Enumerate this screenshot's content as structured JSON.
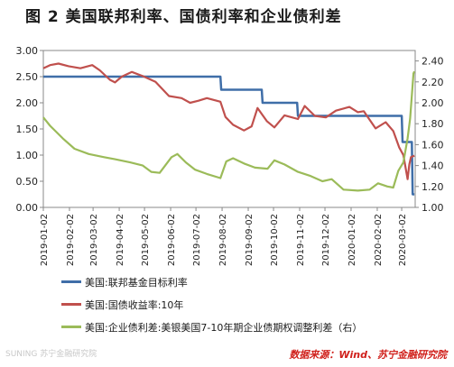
{
  "figure": {
    "title": "图 2  美国联邦利率、国债利率和企业债利差",
    "source": "数据来源：Wind、苏宁金融研究院",
    "watermark": "SUNING 苏宁金融研究院"
  },
  "colors": {
    "fed_funds": "#3f6ea8",
    "treasury_10y": "#c0504d",
    "corp_spread": "#9bbb59",
    "axis": "#888888",
    "title": "#1a1a1a",
    "source": "#d0201b"
  },
  "chart_data": {
    "type": "line",
    "left_axis": {
      "ylim": [
        0.0,
        3.0
      ],
      "ticks": [
        "0.00",
        "0.50",
        "1.00",
        "1.50",
        "2.00",
        "2.50",
        "3.00"
      ]
    },
    "right_axis": {
      "ylim": [
        1.0,
        2.5
      ],
      "ticks": [
        "1.00",
        "1.20",
        "1.40",
        "1.60",
        "1.80",
        "2.00",
        "2.20",
        "2.40"
      ]
    },
    "x_ticks": [
      "2019-01-02",
      "2019-02-02",
      "2019-03-02",
      "2019-04-02",
      "2019-05-02",
      "2019-06-02",
      "2019-07-02",
      "2019-08-02",
      "2019-09-02",
      "2019-10-02",
      "2019-11-02",
      "2019-12-02",
      "2020-01-02",
      "2020-02-02",
      "2020-03-02"
    ],
    "grid": false,
    "legend_placement": "bottom",
    "series": [
      {
        "name": "美国:联邦基金目标利率",
        "axis": "left",
        "points": [
          [
            "2019-01-02",
            2.5
          ],
          [
            "2019-07-31",
            2.5
          ],
          [
            "2019-08-01",
            2.25
          ],
          [
            "2019-09-18",
            2.25
          ],
          [
            "2019-09-19",
            2.0
          ],
          [
            "2019-10-30",
            2.0
          ],
          [
            "2019-10-31",
            1.75
          ],
          [
            "2020-03-02",
            1.75
          ],
          [
            "2020-03-03",
            1.25
          ],
          [
            "2020-03-14",
            1.25
          ],
          [
            "2020-03-15",
            0.25
          ],
          [
            "2020-03-17",
            0.25
          ]
        ]
      },
      {
        "name": "美国:国债收益率:10年",
        "axis": "left",
        "points": [
          [
            "2019-01-02",
            2.66
          ],
          [
            "2019-01-10",
            2.72
          ],
          [
            "2019-01-20",
            2.75
          ],
          [
            "2019-02-01",
            2.7
          ],
          [
            "2019-02-15",
            2.66
          ],
          [
            "2019-03-01",
            2.72
          ],
          [
            "2019-03-10",
            2.62
          ],
          [
            "2019-03-22",
            2.44
          ],
          [
            "2019-03-28",
            2.39
          ],
          [
            "2019-04-05",
            2.5
          ],
          [
            "2019-04-17",
            2.59
          ],
          [
            "2019-04-30",
            2.51
          ],
          [
            "2019-05-15",
            2.4
          ],
          [
            "2019-05-31",
            2.13
          ],
          [
            "2019-06-15",
            2.09
          ],
          [
            "2019-06-25",
            2.0
          ],
          [
            "2019-07-05",
            2.04
          ],
          [
            "2019-07-15",
            2.09
          ],
          [
            "2019-07-31",
            2.02
          ],
          [
            "2019-08-06",
            1.73
          ],
          [
            "2019-08-15",
            1.58
          ],
          [
            "2019-08-28",
            1.47
          ],
          [
            "2019-09-06",
            1.55
          ],
          [
            "2019-09-13",
            1.9
          ],
          [
            "2019-09-24",
            1.65
          ],
          [
            "2019-10-03",
            1.53
          ],
          [
            "2019-10-15",
            1.76
          ],
          [
            "2019-10-31",
            1.69
          ],
          [
            "2019-11-08",
            1.94
          ],
          [
            "2019-11-20",
            1.75
          ],
          [
            "2019-12-03",
            1.72
          ],
          [
            "2019-12-15",
            1.85
          ],
          [
            "2019-12-31",
            1.92
          ],
          [
            "2020-01-10",
            1.82
          ],
          [
            "2020-01-17",
            1.84
          ],
          [
            "2020-01-31",
            1.51
          ],
          [
            "2020-02-12",
            1.63
          ],
          [
            "2020-02-21",
            1.46
          ],
          [
            "2020-02-28",
            1.15
          ],
          [
            "2020-03-04",
            1.0
          ],
          [
            "2020-03-09",
            0.54
          ],
          [
            "2020-03-11",
            0.82
          ],
          [
            "2020-03-13",
            0.96
          ],
          [
            "2020-03-17",
            0.99
          ]
        ]
      },
      {
        "name": "美国:企业债利差:美银美国7-10年期企业债期权调整利差（右）",
        "axis": "right",
        "points": [
          [
            "2019-01-02",
            1.86
          ],
          [
            "2019-01-10",
            1.78
          ],
          [
            "2019-01-25",
            1.66
          ],
          [
            "2019-02-08",
            1.56
          ],
          [
            "2019-02-25",
            1.51
          ],
          [
            "2019-03-15",
            1.48
          ],
          [
            "2019-03-28",
            1.46
          ],
          [
            "2019-04-15",
            1.43
          ],
          [
            "2019-04-30",
            1.4
          ],
          [
            "2019-05-10",
            1.34
          ],
          [
            "2019-05-20",
            1.33
          ],
          [
            "2019-06-03",
            1.48
          ],
          [
            "2019-06-10",
            1.51
          ],
          [
            "2019-06-20",
            1.43
          ],
          [
            "2019-07-01",
            1.36
          ],
          [
            "2019-07-15",
            1.32
          ],
          [
            "2019-07-31",
            1.28
          ],
          [
            "2019-08-07",
            1.44
          ],
          [
            "2019-08-15",
            1.47
          ],
          [
            "2019-08-28",
            1.42
          ],
          [
            "2019-09-10",
            1.38
          ],
          [
            "2019-09-25",
            1.37
          ],
          [
            "2019-10-03",
            1.45
          ],
          [
            "2019-10-15",
            1.41
          ],
          [
            "2019-10-31",
            1.34
          ],
          [
            "2019-11-15",
            1.3
          ],
          [
            "2019-11-29",
            1.25
          ],
          [
            "2019-12-10",
            1.27
          ],
          [
            "2019-12-24",
            1.17
          ],
          [
            "2020-01-10",
            1.16
          ],
          [
            "2020-01-24",
            1.17
          ],
          [
            "2020-02-03",
            1.23
          ],
          [
            "2020-02-14",
            1.2
          ],
          [
            "2020-02-21",
            1.19
          ],
          [
            "2020-02-27",
            1.35
          ],
          [
            "2020-03-04",
            1.43
          ],
          [
            "2020-03-09",
            1.66
          ],
          [
            "2020-03-12",
            1.85
          ],
          [
            "2020-03-16",
            2.28
          ],
          [
            "2020-03-17",
            2.3
          ]
        ]
      }
    ]
  }
}
